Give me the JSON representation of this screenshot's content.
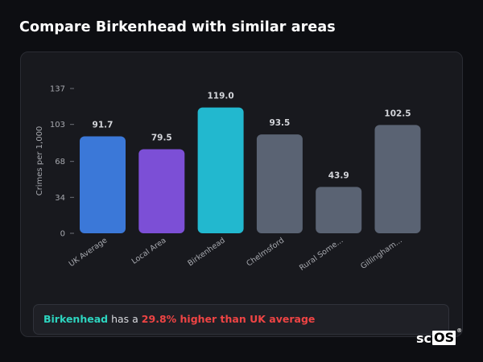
{
  "page": {
    "title": "Compare Birkenhead with similar areas"
  },
  "summary": {
    "area": "Birkenhead",
    "mid": "has a",
    "highlight": "29.8% higher than UK average"
  },
  "logo": {
    "prefix": "sc",
    "boxed": "OS",
    "mark": "®"
  },
  "colors": {
    "uk_average": "#3b78d8",
    "local_area": "#7c4fd6",
    "focus_area": "#22b8cf",
    "other": "#5a6373"
  },
  "chart_data": {
    "type": "bar",
    "title": "",
    "xlabel": "",
    "ylabel": "Crimes per 1,000",
    "ylim": [
      0,
      137
    ],
    "yticks": [
      0,
      34,
      68,
      103,
      137
    ],
    "grid": false,
    "categories": [
      "UK Average",
      "Local Area",
      "Birkenhead",
      "Chelmsford",
      "Rural Some...",
      "Gillingham..."
    ],
    "values": [
      91.7,
      79.5,
      119.0,
      93.5,
      43.9,
      102.5
    ],
    "value_labels": [
      "91.7",
      "79.5",
      "119.0",
      "93.5",
      "43.9",
      "102.5"
    ],
    "bar_colors": [
      "#3b78d8",
      "#7c4fd6",
      "#22b8cf",
      "#5a6373",
      "#5a6373",
      "#5a6373"
    ]
  }
}
